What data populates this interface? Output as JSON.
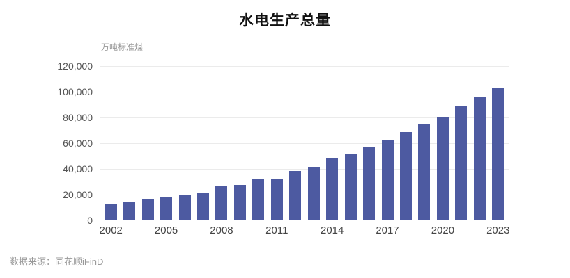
{
  "title": "水电生产总量",
  "unit_label": "万吨标准煤",
  "source": "数据来源：同花顺iFinD",
  "colors": {
    "bar": "#4D5AA1",
    "grid": "#ebebeb",
    "zero_axis": "#c9c9c9",
    "ytick_text": "#555555",
    "xtick_text": "#444444",
    "muted_text": "#999999",
    "title_text": "#111111"
  },
  "chart_data": {
    "type": "bar",
    "title": "水电生产总量",
    "xlabel": "",
    "ylabel": "万吨标准煤",
    "categories": [
      2002,
      2003,
      2004,
      2005,
      2006,
      2007,
      2008,
      2009,
      2010,
      2011,
      2012,
      2013,
      2014,
      2015,
      2016,
      2017,
      2018,
      2019,
      2020,
      2021,
      2022,
      2023
    ],
    "values": [
      12800,
      13800,
      16500,
      18400,
      20100,
      21900,
      26300,
      27800,
      32000,
      32200,
      38600,
      41600,
      48500,
      52000,
      57400,
      62300,
      68700,
      75100,
      80300,
      88500,
      95800,
      102500
    ],
    "ylim": [
      0,
      120000
    ],
    "ytick_step": 20000,
    "ytick_labels": [
      "0",
      "20,000",
      "40,000",
      "60,000",
      "80,000",
      "100,000",
      "120,000"
    ],
    "xtick_labels": [
      "2002",
      "2005",
      "2008",
      "2011",
      "2014",
      "2017",
      "2020",
      "2023"
    ],
    "xtick_every": 3,
    "grid": true,
    "legend": false,
    "bar_color": "#4D5AA1",
    "source": "数据来源：同花顺iFinD"
  }
}
